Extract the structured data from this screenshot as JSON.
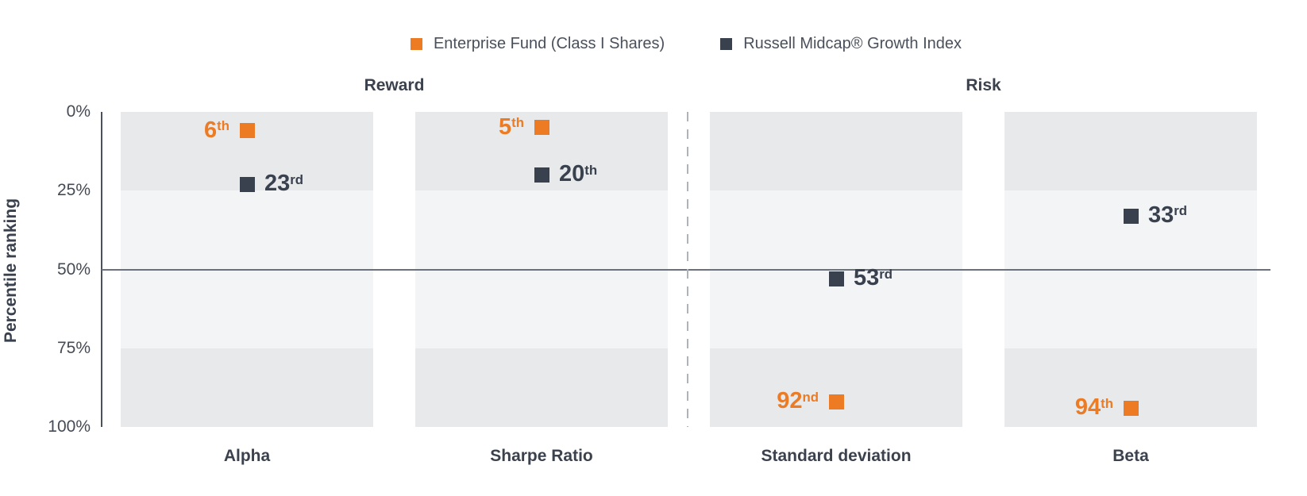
{
  "y_axis": {
    "label": "Percentile ranking",
    "tick_labels": [
      "0%",
      "25%",
      "50%",
      "75%",
      "100%"
    ]
  },
  "colors": {
    "fund_orange": "#EC7B23",
    "index_navy": "#3A414E",
    "band_dark": "#E7E9EB",
    "band_light": "#F3F4F5"
  },
  "chart_data": {
    "type": "scatter",
    "title": "",
    "xlabel": "",
    "ylabel": "Percentile ranking",
    "y_inverted": true,
    "ylim": [
      0,
      100
    ],
    "y_ticks": [
      0,
      25,
      50,
      75,
      100
    ],
    "y_tick_labels": [
      "0%",
      "25%",
      "50%",
      "75%",
      "100%"
    ],
    "categories": [
      "Alpha",
      "Sharpe Ratio",
      "Standard deviation",
      "Beta"
    ],
    "groups": [
      {
        "label": "Reward",
        "categories": [
          "Alpha",
          "Sharpe Ratio"
        ]
      },
      {
        "label": "Risk",
        "categories": [
          "Standard deviation",
          "Beta"
        ]
      }
    ],
    "divider_after_category_index": 1,
    "reference_line": 50,
    "bands": [
      {
        "from": 0,
        "to": 25,
        "color": "#E7E9EB"
      },
      {
        "from": 25,
        "to": 75,
        "color": "#F3F4F5"
      },
      {
        "from": 75,
        "to": 100,
        "color": "#E7E9EB"
      }
    ],
    "legend_position": "top-center",
    "series": [
      {
        "name": "Enterprise Fund (Class I Shares)",
        "color": "#EC7B23",
        "marker": "square",
        "label_side": "left",
        "values": [
          6,
          5,
          92,
          94
        ],
        "labels": [
          {
            "num": "6",
            "suf": "th"
          },
          {
            "num": "5",
            "suf": "th"
          },
          {
            "num": "92",
            "suf": "nd"
          },
          {
            "num": "94",
            "suf": "th"
          }
        ]
      },
      {
        "name": "Russell Midcap® Growth Index",
        "color": "#3A414E",
        "marker": "square",
        "label_side": "right",
        "values": [
          23,
          20,
          53,
          33
        ],
        "labels": [
          {
            "num": "23",
            "suf": "rd"
          },
          {
            "num": "20",
            "suf": "th"
          },
          {
            "num": "53",
            "suf": "rd"
          },
          {
            "num": "33",
            "suf": "rd"
          }
        ]
      }
    ]
  }
}
